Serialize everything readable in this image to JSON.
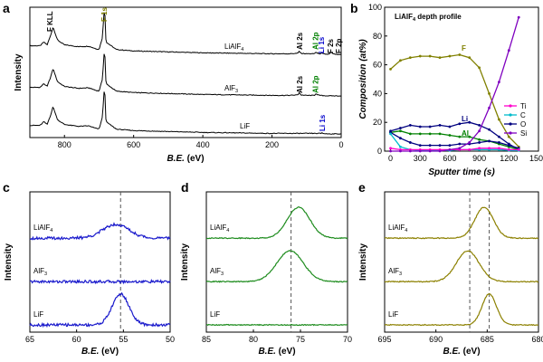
{
  "chart_data": [
    {
      "panel": "a",
      "type": "line",
      "title": "",
      "xlabel": "B.E. (eV)",
      "ylabel": "Intensity",
      "xlim": [
        900,
        0
      ],
      "xticks": [
        "800",
        "600",
        "400",
        "200",
        "0"
      ],
      "series": [
        {
          "name": "LiAlF4",
          "label_main": "LiAlF",
          "label_sub": "4",
          "x": [
            900,
            870,
            860,
            850,
            840,
            833,
            820,
            800,
            760,
            730,
            710,
            700,
            690,
            686,
            685,
            683,
            680,
            650,
            600,
            500,
            400,
            300,
            200,
            150,
            125,
            121,
            117,
            100,
            80,
            75,
            73,
            70,
            60,
            56,
            55,
            54,
            45,
            34,
            31,
            20,
            5,
            0
          ],
          "y": [
            0.22,
            0.22,
            0.3,
            0.24,
            0.44,
            0.62,
            0.34,
            0.24,
            0.2,
            0.21,
            0.16,
            0.14,
            0.4,
            0.88,
            1.0,
            0.88,
            0.3,
            0.14,
            0.11,
            0.09,
            0.07,
            0.06,
            0.05,
            0.05,
            0.06,
            0.11,
            0.06,
            0.05,
            0.05,
            0.06,
            0.1,
            0.06,
            0.05,
            0.05,
            0.09,
            0.05,
            0.04,
            0.04,
            0.08,
            0.04,
            0.03,
            0.03
          ]
        },
        {
          "name": "AlF3",
          "label_main": "AlF",
          "label_sub": "3",
          "x": [
            900,
            870,
            860,
            850,
            840,
            833,
            820,
            800,
            760,
            730,
            710,
            700,
            690,
            686,
            685,
            683,
            680,
            650,
            600,
            500,
            400,
            300,
            200,
            150,
            125,
            121,
            117,
            100,
            80,
            75,
            73,
            70,
            60,
            40,
            20,
            0
          ],
          "y": [
            0.22,
            0.22,
            0.3,
            0.24,
            0.44,
            0.62,
            0.34,
            0.24,
            0.2,
            0.21,
            0.16,
            0.14,
            0.4,
            0.88,
            1.0,
            0.88,
            0.3,
            0.14,
            0.11,
            0.09,
            0.07,
            0.06,
            0.05,
            0.05,
            0.06,
            0.12,
            0.06,
            0.05,
            0.05,
            0.06,
            0.11,
            0.06,
            0.05,
            0.04,
            0.04,
            0.04
          ]
        },
        {
          "name": "LiF",
          "label_main": "LiF",
          "label_sub": "",
          "x": [
            900,
            870,
            860,
            850,
            840,
            833,
            820,
            800,
            760,
            730,
            710,
            700,
            690,
            686,
            685,
            683,
            680,
            650,
            600,
            500,
            400,
            300,
            200,
            100,
            60,
            56,
            55,
            54,
            40,
            0
          ],
          "y": [
            0.22,
            0.22,
            0.3,
            0.24,
            0.44,
            0.62,
            0.34,
            0.24,
            0.2,
            0.21,
            0.16,
            0.14,
            0.4,
            0.88,
            1.0,
            0.88,
            0.3,
            0.14,
            0.11,
            0.09,
            0.07,
            0.06,
            0.05,
            0.05,
            0.05,
            0.05,
            0.09,
            0.05,
            0.04,
            0.04
          ]
        }
      ],
      "annotations": [
        {
          "text": "F KLL",
          "color": "#000000"
        },
        {
          "text": "F 1s",
          "color": "#808000"
        },
        {
          "text": "Al 2s",
          "color": "#000000"
        },
        {
          "text": "Al 2p",
          "color": "#008000"
        },
        {
          "text": "Li 1s",
          "color": "#0000cc"
        },
        {
          "text": "F 2s",
          "color": "#000000"
        },
        {
          "text": "F 2p",
          "color": "#000000"
        },
        {
          "text": "Al 2s",
          "color": "#000000"
        },
        {
          "text": "Al 2p",
          "color": "#008000"
        },
        {
          "text": "Li 1s",
          "color": "#0000cc"
        }
      ]
    },
    {
      "panel": "b",
      "type": "line",
      "title": "LiAlF4 depth profile",
      "title_main": "LiAlF",
      "title_sub": "4",
      "title_tail": " depth profile",
      "xlabel": "Sputter time (s)",
      "ylabel": "Composition (at%)",
      "xlim": [
        -60,
        1500
      ],
      "ylim": [
        0,
        100
      ],
      "xticks": [
        "0",
        "300",
        "600",
        "900",
        "1200",
        "1500"
      ],
      "yticks": [
        "0",
        "20",
        "40",
        "60",
        "80",
        "100"
      ],
      "x": [
        0,
        100,
        200,
        300,
        400,
        500,
        600,
        700,
        800,
        900,
        1000,
        1100,
        1200,
        1300
      ],
      "series": [
        {
          "name": "F",
          "color": "#808000",
          "values": [
            57,
            63,
            65,
            66,
            66,
            65,
            66,
            67,
            65,
            58,
            40,
            22,
            10,
            3
          ]
        },
        {
          "name": "Li",
          "color": "#00007f",
          "values": [
            14,
            16,
            18,
            17,
            17,
            18,
            17,
            19,
            20,
            18,
            15,
            10,
            5,
            1
          ]
        },
        {
          "name": "Al",
          "color": "#008000",
          "values": [
            13,
            14,
            12,
            12,
            12,
            12,
            11,
            10,
            10,
            8,
            7,
            5,
            3,
            1
          ]
        },
        {
          "name": "O",
          "color": "#000080",
          "values": [
            13,
            9,
            6,
            4,
            4,
            4,
            4,
            5,
            5,
            6,
            7,
            6,
            4,
            2
          ]
        },
        {
          "name": "C",
          "color": "#00bbcc",
          "values": [
            12,
            3,
            1,
            0.5,
            0.5,
            0.5,
            0.5,
            1,
            1,
            1,
            1,
            1,
            0.5,
            0.5
          ]
        },
        {
          "name": "Ti",
          "color": "#ff00cc",
          "values": [
            2,
            1,
            1,
            1,
            1,
            1,
            1,
            1,
            1,
            2,
            2,
            2,
            1,
            1
          ]
        },
        {
          "name": "Si",
          "color": "#7f00bf",
          "values": [
            0,
            0,
            0,
            0,
            0,
            0,
            1,
            2,
            6,
            14,
            30,
            48,
            70,
            93
          ]
        }
      ],
      "legend": [
        "Ti",
        "C",
        "O",
        "Si"
      ],
      "legend_position": "right",
      "inline_labels": [
        "F",
        "Li",
        "Al"
      ]
    },
    {
      "panel": "c",
      "type": "line",
      "xlabel": "B.E. (eV)",
      "ylabel": "Intensity",
      "xlim": [
        65,
        50
      ],
      "xticks": [
        "65",
        "60",
        "55",
        "50"
      ],
      "color": "#1a1acc",
      "reference_line": 55.3,
      "series": [
        {
          "name": "LiAlF4",
          "label_main": "LiAlF",
          "label_sub": "4",
          "peak": 55.8,
          "width": 1.4,
          "height": 0.45
        },
        {
          "name": "AlF3",
          "label_main": "AlF",
          "label_sub": "3",
          "peak": 55.5,
          "width": 2.0,
          "height": 0.0
        },
        {
          "name": "LiF",
          "label_main": "LiF",
          "label_sub": "",
          "peak": 55.3,
          "width": 0.9,
          "height": 1.0
        }
      ]
    },
    {
      "panel": "d",
      "type": "line",
      "xlabel": "B.E. (eV)",
      "ylabel": "Intensity",
      "xlim": [
        85,
        70
      ],
      "xticks": [
        "85",
        "80",
        "75",
        "70"
      ],
      "color": "#1e8c1e",
      "reference_line": 76.0,
      "series": [
        {
          "name": "LiAlF4",
          "label_main": "LiAlF",
          "label_sub": "4",
          "peak": 75.2,
          "width": 1.2,
          "height": 1.0
        },
        {
          "name": "AlF3",
          "label_main": "AlF",
          "label_sub": "3",
          "peak": 76.1,
          "width": 1.4,
          "height": 1.0
        },
        {
          "name": "LiF",
          "label_main": "LiF",
          "label_sub": "",
          "peak": 76.0,
          "width": 1.0,
          "height": 0.0
        }
      ]
    },
    {
      "panel": "e",
      "type": "line",
      "xlabel": "B.E. (eV)",
      "ylabel": "Intensity",
      "xlim": [
        695,
        680
      ],
      "xticks": [
        "695",
        "690",
        "685",
        "680"
      ],
      "color": "#8c8000",
      "reference_lines": [
        686.7,
        684.8
      ],
      "series": [
        {
          "name": "LiAlF4",
          "label_main": "LiAlF",
          "label_sub": "4",
          "peak": 685.3,
          "width": 0.9,
          "height": 1.0
        },
        {
          "name": "AlF3",
          "label_main": "AlF",
          "label_sub": "3",
          "peak": 686.9,
          "width": 1.1,
          "height": 1.0
        },
        {
          "name": "LiF",
          "label_main": "LiF",
          "label_sub": "",
          "peak": 684.8,
          "width": 0.7,
          "height": 1.0
        }
      ]
    }
  ],
  "panel_labels": [
    "a",
    "b",
    "c",
    "d",
    "e"
  ]
}
